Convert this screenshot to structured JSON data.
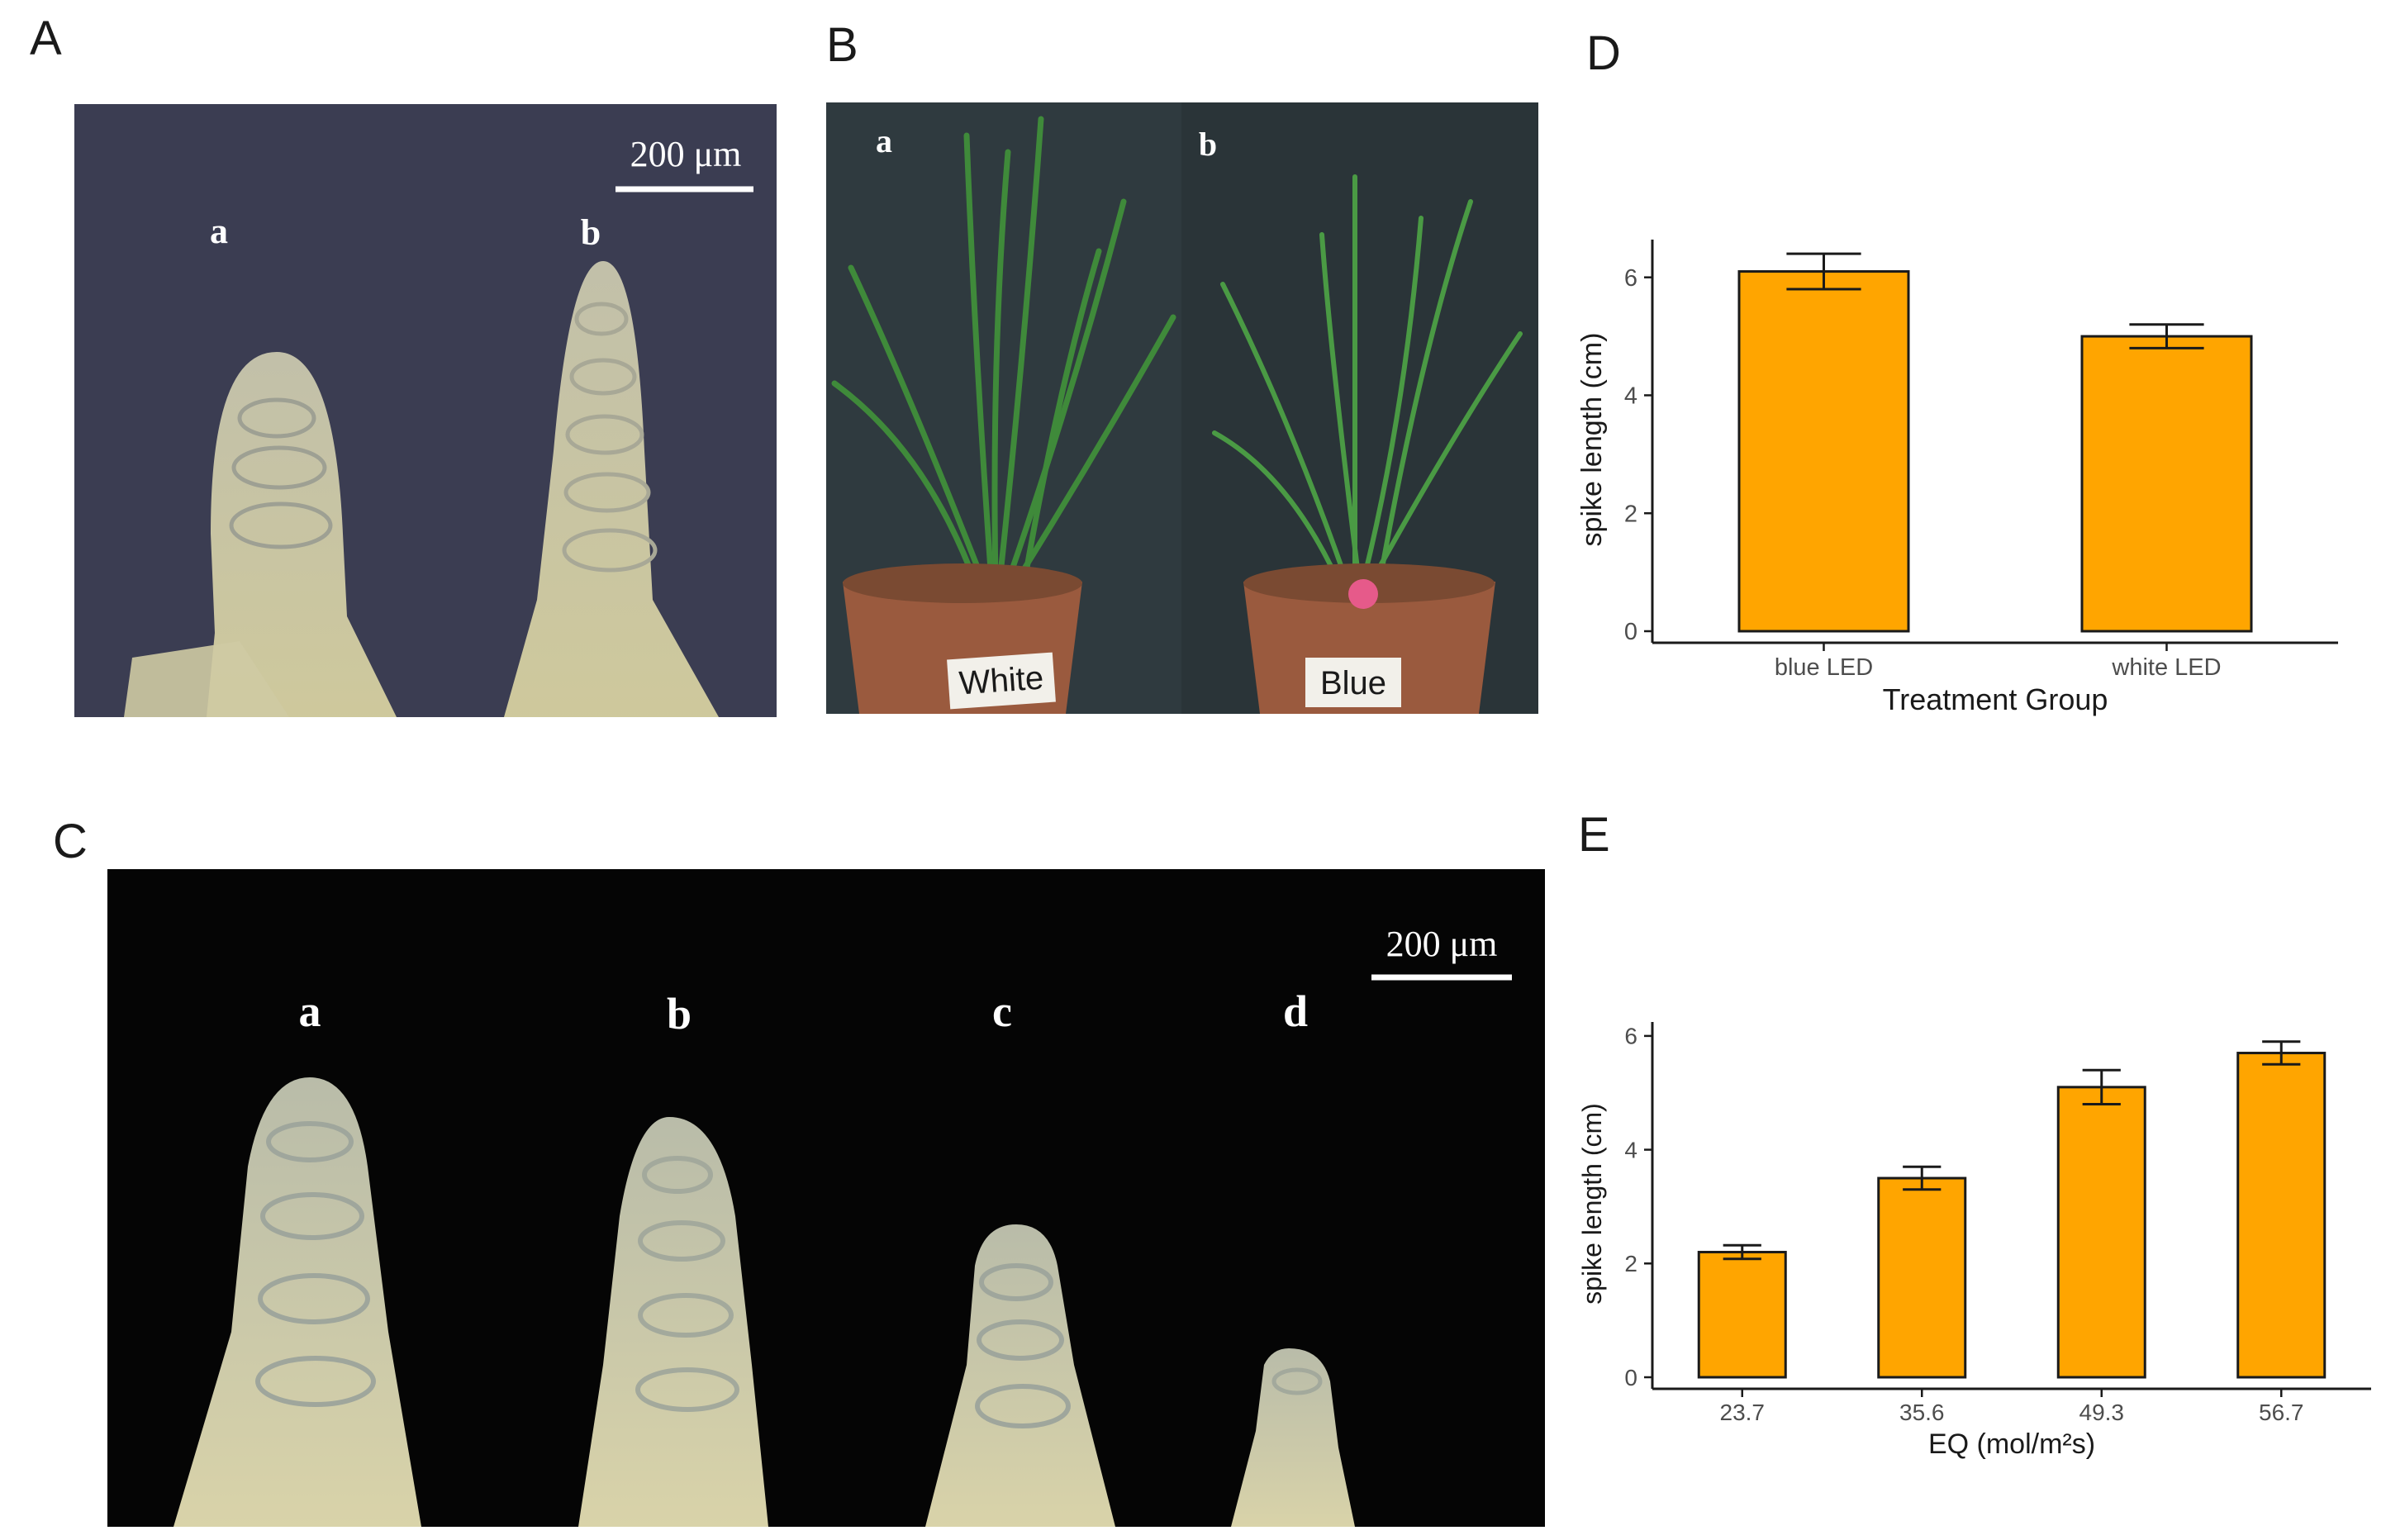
{
  "panels": {
    "A": {
      "letter": "A",
      "scale_bar": "200 μm",
      "sample_labels": [
        "a",
        "b"
      ]
    },
    "B": {
      "letter": "B",
      "sample_labels": [
        "a",
        "b"
      ],
      "pot_labels": [
        "White",
        "Blue"
      ]
    },
    "C": {
      "letter": "C",
      "scale_bar": "200 μm",
      "sample_labels": [
        "a",
        "b",
        "c",
        "d"
      ]
    },
    "D": {
      "letter": "D"
    },
    "E": {
      "letter": "E"
    }
  },
  "colors": {
    "bar_fill": "#FFA500",
    "bar_stroke": "#1a1a1a",
    "panel_A_bg": "#3b3d52",
    "panel_B_bg": "#2f3a3f",
    "panel_C_bg": "#050505"
  },
  "chart_data": [
    {
      "panel": "D",
      "type": "bar",
      "categories": [
        "blue LED",
        "white LED"
      ],
      "values": [
        6.1,
        5.0
      ],
      "errors": [
        0.3,
        0.2
      ],
      "xlabel": "Treatment Group",
      "ylabel": "spike length (cm)",
      "ylim": [
        0,
        6.5
      ],
      "yticks": [
        0,
        2,
        4,
        6
      ],
      "grid": false
    },
    {
      "panel": "E",
      "type": "bar",
      "categories": [
        "23.7",
        "35.6",
        "49.3",
        "56.7"
      ],
      "values": [
        2.2,
        3.5,
        5.1,
        5.7
      ],
      "errors": [
        0.12,
        0.2,
        0.3,
        0.2
      ],
      "xlabel": "EQ (mol/m²s)",
      "ylabel": "spike length (cm)",
      "ylim": [
        0,
        6.1
      ],
      "yticks": [
        0,
        2,
        4,
        6
      ],
      "grid": false
    }
  ]
}
